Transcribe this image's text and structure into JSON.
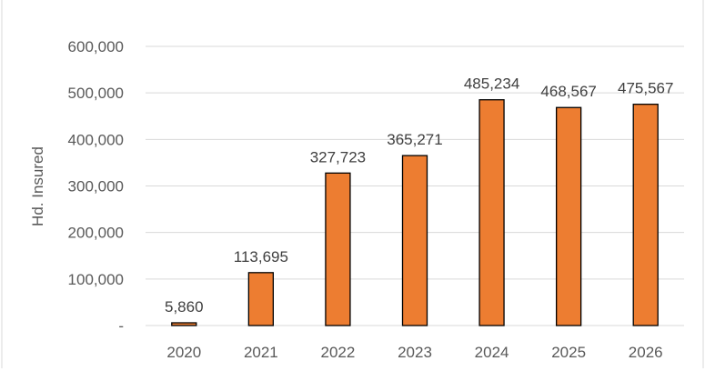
{
  "chart_data": {
    "type": "bar",
    "categories": [
      "2020",
      "2021",
      "2022",
      "2023",
      "2024",
      "2025",
      "2026"
    ],
    "values": [
      5860,
      113695,
      327723,
      365271,
      485234,
      468567,
      475567
    ],
    "value_labels": [
      "5,860",
      "113,695",
      "327,723",
      "365,271",
      "485,234",
      "468,567",
      "475,567"
    ],
    "title": "",
    "xlabel": "",
    "ylabel": "Hd. Insured",
    "ylim": [
      0,
      600000
    ],
    "y_ticks": [
      0,
      100000,
      200000,
      300000,
      400000,
      500000,
      600000
    ],
    "y_tick_labels": [
      "-",
      "100,000",
      "200,000",
      "300,000",
      "400,000",
      "500,000",
      "600,000"
    ],
    "grid": true,
    "legend": "none",
    "bar_color": "#ED7D31",
    "bar_edge_color": "#000000",
    "grid_color": "#D9D9D9"
  }
}
